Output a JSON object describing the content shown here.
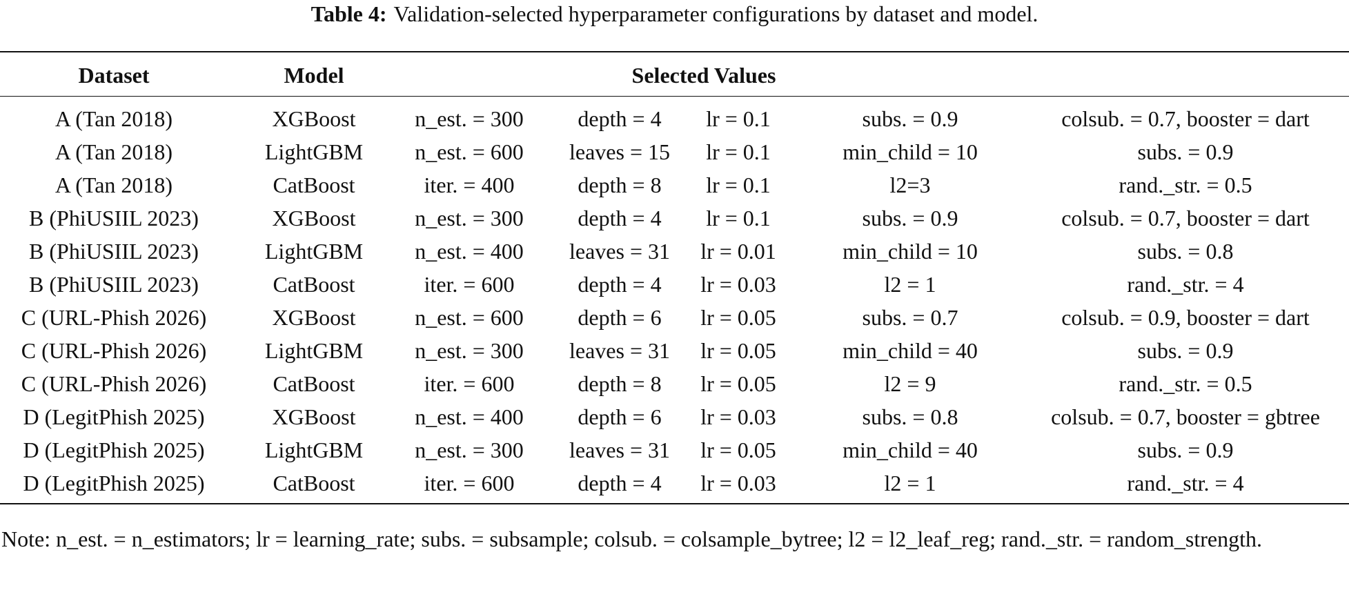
{
  "caption": {
    "label": "Table 4:",
    "text": "Validation-selected hyperparameter configurations by dataset and model."
  },
  "table": {
    "header": [
      "Dataset",
      "Model",
      "Selected Values"
    ],
    "rows": [
      [
        "A (Tan 2018)",
        "XGBoost",
        "n_est. = 300",
        "depth = 4",
        "lr = 0.1",
        "subs. = 0.9",
        "colsub. = 0.7, booster = dart"
      ],
      [
        "A (Tan 2018)",
        "LightGBM",
        "n_est. = 600",
        "leaves = 15",
        "lr = 0.1",
        "min_child = 10",
        "subs. = 0.9"
      ],
      [
        "A (Tan 2018)",
        "CatBoost",
        "iter. = 400",
        "depth = 8",
        "lr = 0.1",
        "l2=3",
        "rand._str. = 0.5"
      ],
      [
        "B (PhiUSIIL 2023)",
        "XGBoost",
        "n_est. = 300",
        "depth = 4",
        "lr = 0.1",
        "subs. = 0.9",
        "colsub. = 0.7, booster = dart"
      ],
      [
        "B (PhiUSIIL 2023)",
        "LightGBM",
        "n_est. = 400",
        "leaves = 31",
        "lr = 0.01",
        "min_child = 10",
        "subs. = 0.8"
      ],
      [
        "B (PhiUSIIL 2023)",
        "CatBoost",
        "iter. = 600",
        "depth = 4",
        "lr = 0.03",
        "l2 = 1",
        "rand._str. = 4"
      ],
      [
        "C (URL-Phish 2026)",
        "XGBoost",
        "n_est. = 600",
        "depth = 6",
        "lr = 0.05",
        "subs. = 0.7",
        "colsub. = 0.9, booster = dart"
      ],
      [
        "C (URL-Phish 2026)",
        "LightGBM",
        "n_est. = 300",
        "leaves = 31",
        "lr = 0.05",
        "min_child = 40",
        "subs. = 0.9"
      ],
      [
        "C (URL-Phish 2026)",
        "CatBoost",
        "iter. = 600",
        "depth = 8",
        "lr = 0.05",
        "l2 = 9",
        "rand._str. = 0.5"
      ],
      [
        "D (LegitPhish 2025)",
        "XGBoost",
        "n_est. = 400",
        "depth = 6",
        "lr = 0.03",
        "subs. = 0.8",
        "colsub. = 0.7, booster = gbtree"
      ],
      [
        "D (LegitPhish 2025)",
        "LightGBM",
        "n_est. = 300",
        "leaves = 31",
        "lr = 0.05",
        "min_child = 40",
        "subs. = 0.9"
      ],
      [
        "D (LegitPhish 2025)",
        "CatBoost",
        "iter. = 600",
        "depth = 4",
        "lr = 0.03",
        "l2 = 1",
        "rand._str. = 4"
      ]
    ]
  },
  "note": "Note: n_est. = n_estimators; lr = learning_rate; subs. = subsample; colsub. = colsample_bytree; l2 = l2_leaf_reg; rand._str. = random_strength."
}
